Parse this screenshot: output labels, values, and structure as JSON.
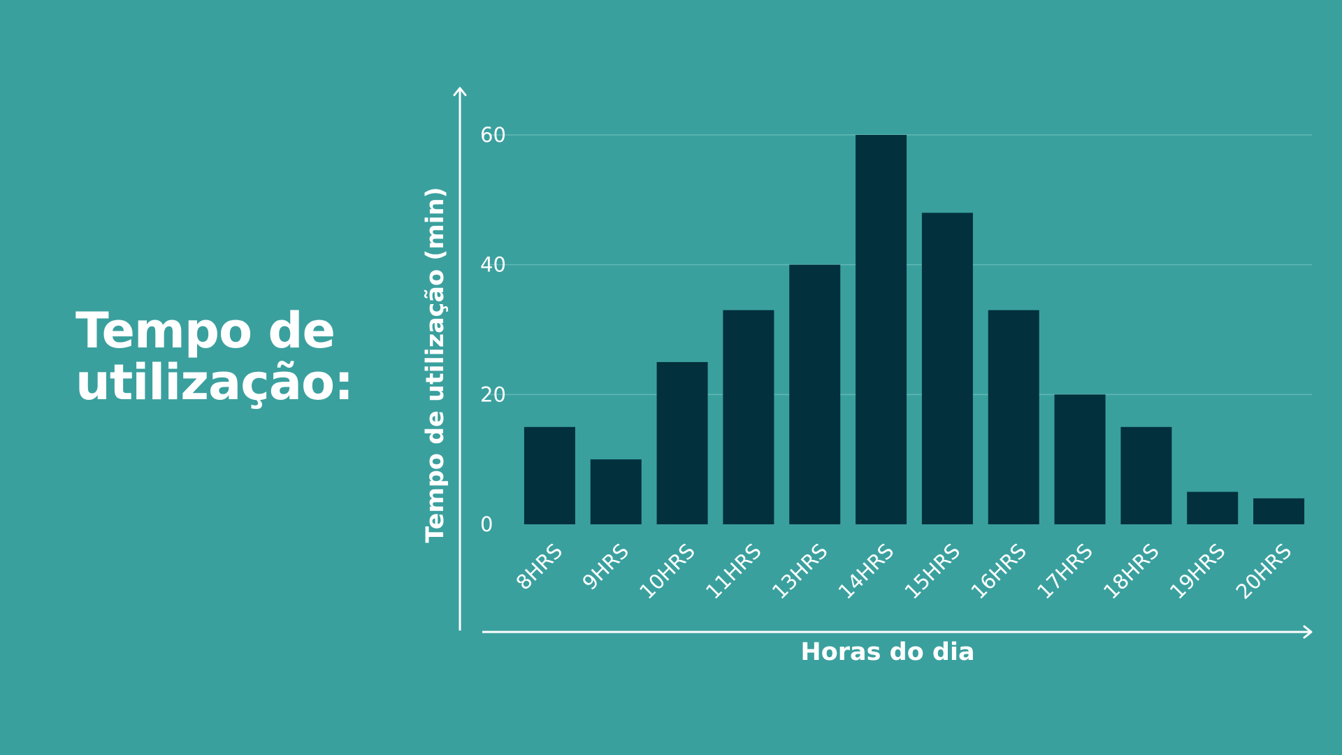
{
  "slide": {
    "title_line1": "Tempo de",
    "title_line2": "utilização:"
  },
  "colors": {
    "background": "#3aa09e",
    "bar": "#02303c",
    "grid": "#62b8b4",
    "axis": "#ffffff",
    "text": "#ffffff"
  },
  "chart_data": {
    "type": "bar",
    "categories": [
      "8HRS",
      "9HRS",
      "10HRS",
      "11HRS",
      "13HRS",
      "14HRS",
      "15HRS",
      "16HRS",
      "17HRS",
      "18HRS",
      "19HRS",
      "20HRS"
    ],
    "values": [
      15,
      10,
      25,
      33,
      40,
      60,
      48,
      33,
      20,
      15,
      5,
      4
    ],
    "title": "Tempo de utilização:",
    "xlabel": "Horas do dia",
    "ylabel": "Tempo de utilização (min)",
    "ylim": [
      0,
      60
    ],
    "yticks": [
      0,
      20,
      40,
      60
    ],
    "grid": true,
    "legend": "none"
  }
}
